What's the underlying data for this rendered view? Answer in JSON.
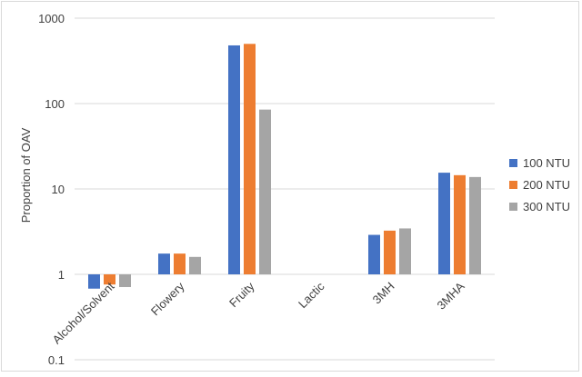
{
  "chart_data": {
    "type": "bar",
    "scale": "log",
    "ylabel": "Proportion of OAV",
    "xlabel": "",
    "title": "",
    "ylim": [
      0.1,
      1000
    ],
    "y_ticks": [
      {
        "value": 0.1,
        "label": "0.1"
      },
      {
        "value": 1,
        "label": "1"
      },
      {
        "value": 10,
        "label": "10"
      },
      {
        "value": 100,
        "label": "100"
      },
      {
        "value": 1000,
        "label": "1000"
      }
    ],
    "gridlines": true,
    "legend_position": "right",
    "categories": [
      "Alcohol/Solvent",
      "Flowery",
      "Fruity",
      "Lactic",
      "3MH",
      "3MHA"
    ],
    "series": [
      {
        "name": "100 NTU",
        "color": "#4472C4",
        "values": [
          0.68,
          1.75,
          480,
          null,
          2.9,
          15.5
        ]
      },
      {
        "name": "200 NTU",
        "color": "#ED7D31",
        "values": [
          0.76,
          1.75,
          500,
          null,
          3.25,
          14.5
        ]
      },
      {
        "name": "300 NTU",
        "color": "#A5A5A5",
        "values": [
          0.71,
          1.6,
          85,
          null,
          3.45,
          13.8
        ]
      }
    ]
  }
}
